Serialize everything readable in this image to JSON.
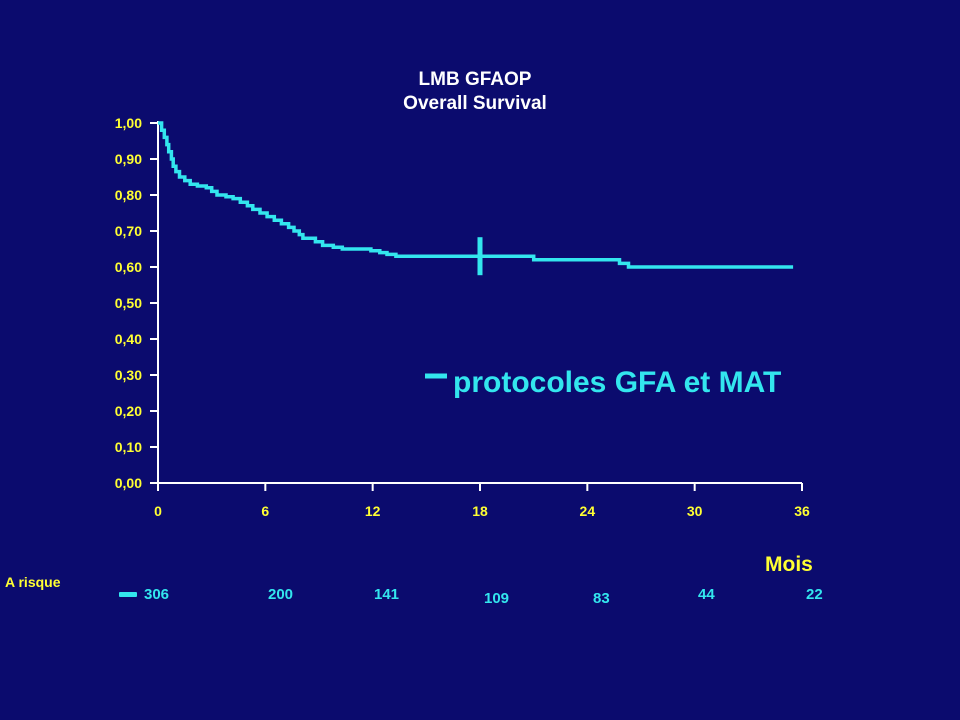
{
  "colors": {
    "background": "#0b0b6e",
    "axis": "#ffffff",
    "tick_label": "#ffff33",
    "series": "#33e6ee"
  },
  "chart_data": {
    "type": "line",
    "title": "LMB GFAOP",
    "subtitle": "Overall Survival",
    "xlabel": "Mois",
    "ylabel": "",
    "xlim": [
      0,
      36
    ],
    "ylim": [
      0,
      1
    ],
    "x_ticks": [
      "0",
      "6",
      "12",
      "18",
      "24",
      "30",
      "36"
    ],
    "y_ticks": [
      "0,00",
      "0,10",
      "0,20",
      "0,30",
      "0,40",
      "0,50",
      "0,60",
      "0,70",
      "0,80",
      "0,90",
      "1,00"
    ],
    "legend": "right-middle",
    "grid": false,
    "series": [
      {
        "name": "protocoles GFA et MAT",
        "step": true,
        "censor_mark_x": 18,
        "points": [
          [
            0,
            1.0
          ],
          [
            0.2,
            0.98
          ],
          [
            0.35,
            0.96
          ],
          [
            0.5,
            0.94
          ],
          [
            0.6,
            0.92
          ],
          [
            0.75,
            0.9
          ],
          [
            0.85,
            0.88
          ],
          [
            1.0,
            0.865
          ],
          [
            1.2,
            0.85
          ],
          [
            1.5,
            0.84
          ],
          [
            1.8,
            0.83
          ],
          [
            2.2,
            0.825
          ],
          [
            2.7,
            0.82
          ],
          [
            3.0,
            0.81
          ],
          [
            3.3,
            0.8
          ],
          [
            3.8,
            0.795
          ],
          [
            4.2,
            0.79
          ],
          [
            4.6,
            0.78
          ],
          [
            5.0,
            0.77
          ],
          [
            5.3,
            0.76
          ],
          [
            5.7,
            0.75
          ],
          [
            6.1,
            0.74
          ],
          [
            6.5,
            0.73
          ],
          [
            6.9,
            0.72
          ],
          [
            7.3,
            0.71
          ],
          [
            7.6,
            0.7
          ],
          [
            7.9,
            0.69
          ],
          [
            8.1,
            0.68
          ],
          [
            8.8,
            0.67
          ],
          [
            9.2,
            0.66
          ],
          [
            9.8,
            0.655
          ],
          [
            10.3,
            0.65
          ],
          [
            11.9,
            0.645
          ],
          [
            12.4,
            0.64
          ],
          [
            12.8,
            0.635
          ],
          [
            13.3,
            0.63
          ],
          [
            21.0,
            0.62
          ],
          [
            25.8,
            0.61
          ],
          [
            26.3,
            0.6
          ],
          [
            35.5,
            0.6
          ]
        ]
      }
    ],
    "at_risk": {
      "label": "A risque",
      "values": [
        306,
        200,
        141,
        109,
        83,
        44,
        22
      ]
    }
  }
}
